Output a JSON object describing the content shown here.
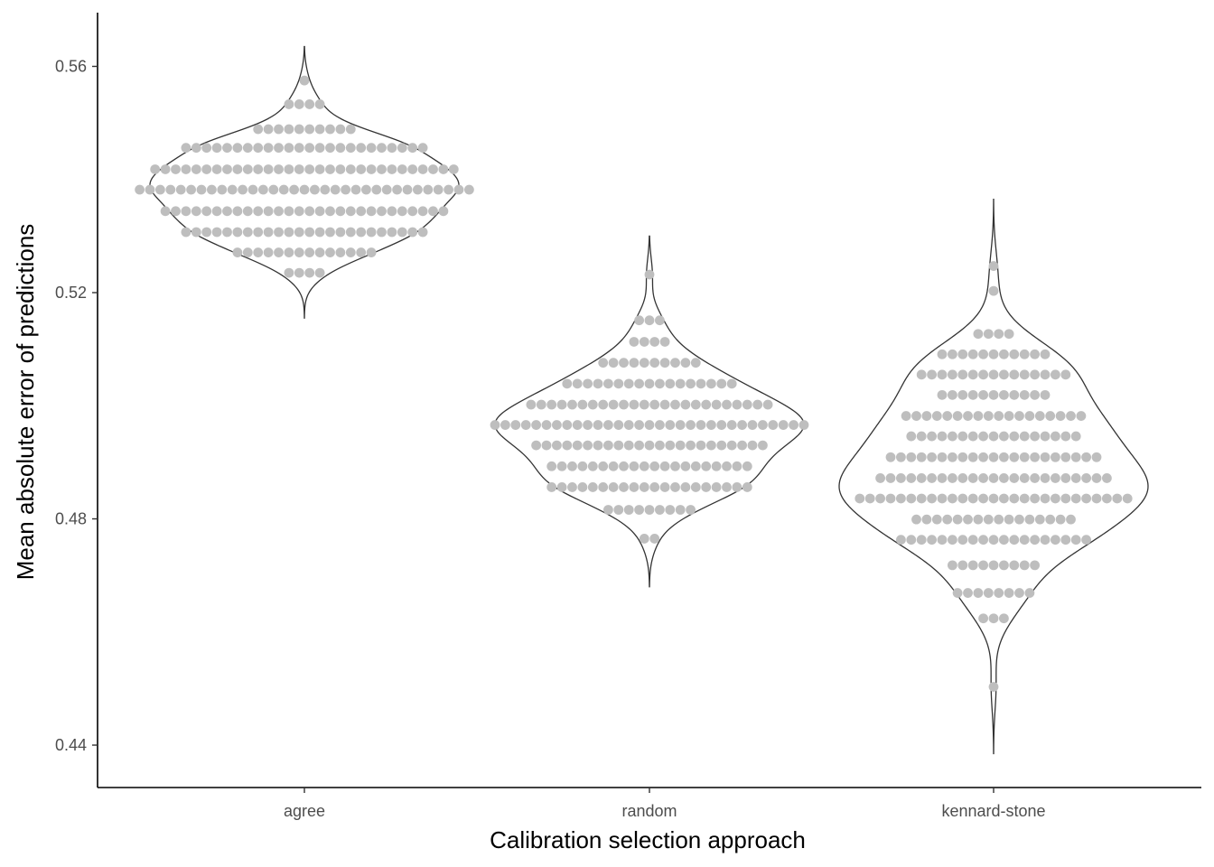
{
  "chart_data": {
    "type": "violin-dotplot",
    "title": "",
    "xlabel": "Calibration selection approach",
    "ylabel": "Mean absolute error of predictions",
    "ylim": [
      0.4325,
      0.5695
    ],
    "yticks": [
      0.44,
      0.48,
      0.52,
      0.56
    ],
    "ytick_labels": [
      "0.44",
      "0.48",
      "0.52",
      "0.56"
    ],
    "categories": [
      "agree",
      "random",
      "kennard-stone"
    ],
    "grid": false,
    "legend": "none",
    "colors": {
      "dots": "#bebebe",
      "violin_outline": "#333333",
      "axis": "#000000"
    },
    "groups": [
      {
        "category": "agree",
        "violin_range": [
          0.5155,
          0.5635
        ],
        "dot_rows": [
          {
            "y": 0.5575,
            "count": 1
          },
          {
            "y": 0.5533,
            "count": 4
          },
          {
            "y": 0.5489,
            "count": 10
          },
          {
            "y": 0.5456,
            "count": 24
          },
          {
            "y": 0.5418,
            "count": 30
          },
          {
            "y": 0.5382,
            "count": 33
          },
          {
            "y": 0.5344,
            "count": 28
          },
          {
            "y": 0.5307,
            "count": 24
          },
          {
            "y": 0.5271,
            "count": 14
          },
          {
            "y": 0.5235,
            "count": 4
          }
        ]
      },
      {
        "category": "random",
        "violin_range": [
          0.468,
          0.53
        ],
        "dot_rows": [
          {
            "y": 0.5232,
            "count": 1
          },
          {
            "y": 0.5151,
            "count": 3
          },
          {
            "y": 0.5113,
            "count": 4
          },
          {
            "y": 0.5076,
            "count": 10
          },
          {
            "y": 0.5039,
            "count": 17
          },
          {
            "y": 0.5002,
            "count": 24
          },
          {
            "y": 0.4966,
            "count": 31
          },
          {
            "y": 0.493,
            "count": 23
          },
          {
            "y": 0.4893,
            "count": 20
          },
          {
            "y": 0.4856,
            "count": 20
          },
          {
            "y": 0.4816,
            "count": 9
          },
          {
            "y": 0.4765,
            "count": 2
          }
        ]
      },
      {
        "category": "kennard-stone",
        "violin_range": [
          0.4385,
          0.5365
        ],
        "dot_rows": [
          {
            "y": 0.5247,
            "count": 1
          },
          {
            "y": 0.5203,
            "count": 1
          },
          {
            "y": 0.5127,
            "count": 4
          },
          {
            "y": 0.5091,
            "count": 11
          },
          {
            "y": 0.5055,
            "count": 15
          },
          {
            "y": 0.5019,
            "count": 11
          },
          {
            "y": 0.4982,
            "count": 18
          },
          {
            "y": 0.4946,
            "count": 17
          },
          {
            "y": 0.4909,
            "count": 21
          },
          {
            "y": 0.4872,
            "count": 23
          },
          {
            "y": 0.4836,
            "count": 27
          },
          {
            "y": 0.4799,
            "count": 16
          },
          {
            "y": 0.4763,
            "count": 19
          },
          {
            "y": 0.4718,
            "count": 9
          },
          {
            "y": 0.4669,
            "count": 8
          },
          {
            "y": 0.4624,
            "count": 3
          },
          {
            "y": 0.4503,
            "count": 1
          }
        ]
      }
    ]
  }
}
